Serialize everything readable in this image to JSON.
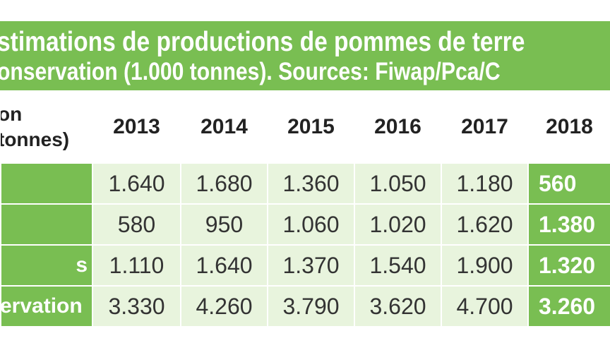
{
  "title": {
    "line1": "stimations de productions de pommes de terre",
    "line2": "onservation (1.000 tonnes). Sources: Fiwap/Pca/C"
  },
  "table": {
    "corner": {
      "line1": "on",
      "line2": "tonnes)"
    },
    "years": [
      "2013",
      "2014",
      "2015",
      "2016",
      "2017",
      "2018"
    ],
    "rows": [
      {
        "label": "",
        "values": [
          "1.640",
          "1.680",
          "1.360",
          "1.050",
          "1.180",
          "560"
        ]
      },
      {
        "label": "",
        "values": [
          "580",
          "950",
          "1.060",
          "1.020",
          "1.620",
          "1.380"
        ]
      },
      {
        "label": "s",
        "values": [
          "1.110",
          "1.640",
          "1.370",
          "1.540",
          "1.900",
          "1.320"
        ]
      },
      {
        "label": "ervation",
        "values": [
          "3.330",
          "4.260",
          "3.790",
          "3.620",
          "4.700",
          "3.260"
        ]
      }
    ]
  },
  "colors": {
    "brand_green": "#79be52",
    "cell_light": "#e8f4dd",
    "text_dark": "#333333"
  }
}
